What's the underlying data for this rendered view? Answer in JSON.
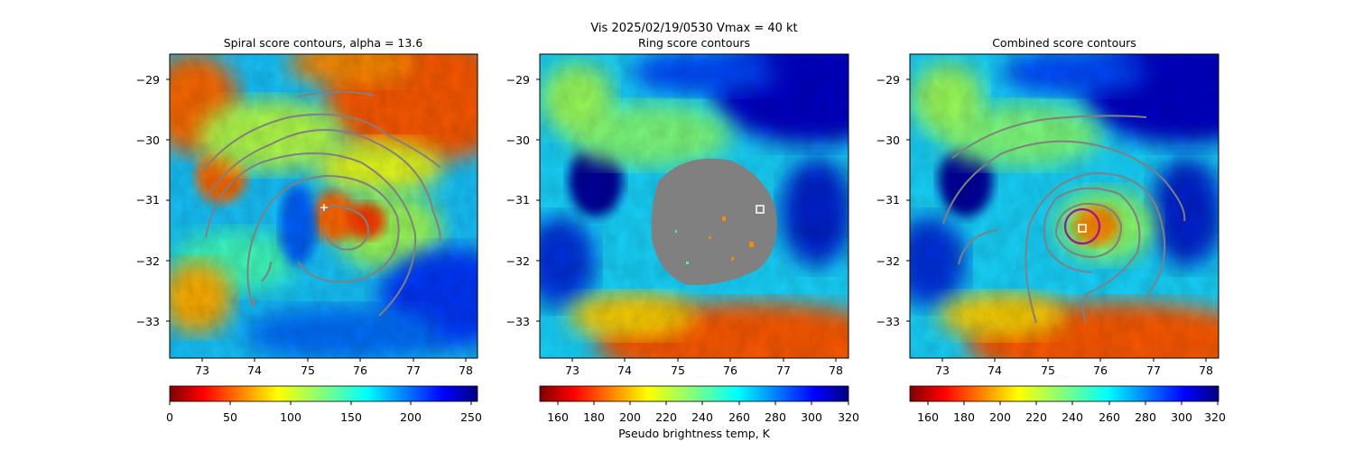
{
  "figure": {
    "suptitle_line1": "Vis  2025/02/19/0530    Vmax = 40 kt",
    "colorbar_label": "Pseudo brightness temp, K"
  },
  "chart_data": [
    {
      "type": "heatmap",
      "title": "Spiral score contours, alpha = 13.6",
      "xlim": [
        72.4,
        78.2
      ],
      "ylim": [
        -33.6,
        -28.6
      ],
      "xticks": [
        "73",
        "74",
        "75",
        "76",
        "77",
        "78"
      ],
      "yticks": [
        "−29",
        "−30",
        "−31",
        "−32",
        "−33"
      ],
      "colormap": "jet_r",
      "colorbar": {
        "min": 0,
        "max": 255,
        "ticks": [
          "0",
          "50",
          "100",
          "150",
          "200",
          "250"
        ]
      },
      "contour_color": "#808080",
      "markers": [
        {
          "kind": "plus",
          "x": 75.3,
          "y": -31.1,
          "color": "#ffffff"
        }
      ]
    },
    {
      "type": "heatmap",
      "title": "Ring score contours",
      "xlim": [
        72.4,
        78.2
      ],
      "ylim": [
        -33.6,
        -28.6
      ],
      "xticks": [
        "73",
        "74",
        "75",
        "76",
        "77",
        "78"
      ],
      "yticks": [
        "−29",
        "−30",
        "−31",
        "−32",
        "−33"
      ],
      "colormap": "jet_r",
      "colorbar": {
        "min": 150,
        "max": 320,
        "ticks": [
          "160",
          "180",
          "200",
          "220",
          "240",
          "260",
          "280",
          "300",
          "320"
        ]
      },
      "masked_region": {
        "center_x": 75.6,
        "center_y": -31.3,
        "radius_deg": 1.0,
        "color": "#808080"
      },
      "markers": [
        {
          "kind": "square",
          "x": 76.55,
          "y": -31.15,
          "color": "#ffffff"
        }
      ]
    },
    {
      "type": "heatmap",
      "title": "Combined score contours",
      "xlim": [
        72.4,
        78.2
      ],
      "ylim": [
        -33.6,
        -28.6
      ],
      "xticks": [
        "73",
        "74",
        "75",
        "76",
        "77",
        "78"
      ],
      "yticks": [
        "−29",
        "−30",
        "−31",
        "−32",
        "−33"
      ],
      "colormap": "jet_r",
      "colorbar": {
        "min": 150,
        "max": 320,
        "ticks": [
          "160",
          "180",
          "200",
          "220",
          "240",
          "260",
          "280",
          "300",
          "320"
        ]
      },
      "contour_color": "#808080",
      "markers": [
        {
          "kind": "circle",
          "x": 75.63,
          "y": -31.42,
          "radius_deg": 0.28,
          "color": "#a0109f"
        },
        {
          "kind": "square",
          "x": 75.63,
          "y": -31.45,
          "color": "#ffffff"
        }
      ]
    }
  ]
}
